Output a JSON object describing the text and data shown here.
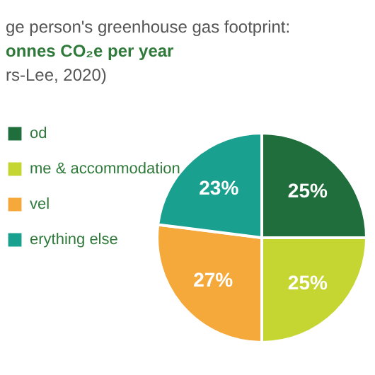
{
  "chart_data": {
    "type": "pie",
    "title": "ge person's greenhouse gas footprint:",
    "subtitle": "onnes CO₂e per year",
    "annotations": [
      "rs-Lee, 2020)"
    ],
    "categories": [
      "od",
      "me & accommodation",
      "vel",
      "erything else"
    ],
    "values": [
      25,
      25,
      27,
      23
    ],
    "value_labels": [
      "25%",
      "25%",
      "27%",
      "23%"
    ],
    "colors": [
      "#1f6e3c",
      "#c5d531",
      "#f4a93a",
      "#1aa08f"
    ],
    "legend": "left"
  }
}
